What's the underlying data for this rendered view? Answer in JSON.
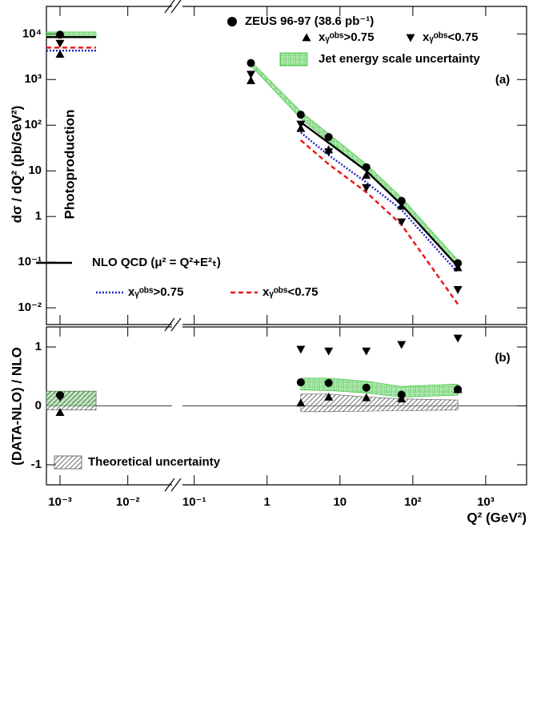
{
  "chart_data": [
    {
      "type": "line",
      "panel_label": "(a)",
      "ylabel": "dσ / dQ² (pb/GeV²)",
      "annotation": "Photoproduction",
      "yscale": "log",
      "ylim": [
        0.0043,
        40000
      ],
      "yticks": [
        {
          "value": 0.01,
          "label": "10⁻²"
        },
        {
          "value": 0.1,
          "label": "10⁻¹"
        },
        1,
        10,
        {
          "value": 100,
          "label": "10²"
        },
        {
          "value": 1000,
          "label": "10³"
        },
        {
          "value": 10000,
          "label": "10⁴"
        }
      ],
      "xscale": "log",
      "xlim": [
        0.00063,
        3640
      ],
      "x_break": [
        0.045,
        0.069
      ],
      "series": [
        {
          "name": "Jet energy scale uncertainty",
          "kind": "band",
          "color": "#22bb22",
          "x": [
            0.00063,
            0.0034,
            null,
            0.6,
            2.9,
            7,
            23,
            70,
            415
          ],
          "lower": [
            8200,
            8200,
            null,
            2000,
            140,
            45,
            10,
            1.8,
            0.08
          ],
          "upper": [
            11000,
            11000,
            null,
            2500,
            200,
            65,
            14,
            2.6,
            0.11
          ]
        },
        {
          "name": "NLO QCD (μ² = Q²+E²ₜ)",
          "kind": "line",
          "dash": "solid",
          "color": "#000000",
          "x": [
            0.00063,
            0.0034,
            null,
            2.9,
            7,
            23,
            70,
            415
          ],
          "values": [
            8500,
            8500,
            null,
            117,
            41,
            10,
            1.8,
            0.08
          ]
        },
        {
          "name": "xᵧᵒᵇˢ>0.75",
          "kind": "line",
          "dash": "dotted",
          "color": "#2222cc",
          "x": [
            0.00063,
            0.0034,
            null,
            2.9,
            7,
            23,
            70,
            415
          ],
          "values": [
            4300,
            4300,
            null,
            69,
            22,
            5.6,
            1.4,
            0.059
          ]
        },
        {
          "name": "xᵧᵒᵇˢ<0.75",
          "kind": "line",
          "dash": "dashed",
          "color": "#ee1111",
          "x": [
            0.00063,
            0.0034,
            null,
            2.9,
            7,
            23,
            70,
            415
          ],
          "values": [
            5000,
            5000,
            null,
            47,
            14,
            3.4,
            0.66,
            0.012
          ]
        },
        {
          "name": "ZEUS 96-97 (38.6 pb⁻¹)",
          "kind": "marker",
          "marker": "circle",
          "color": "#000000",
          "x": [
            0.001,
            0.6,
            2.9,
            7,
            23,
            70,
            415
          ],
          "values": [
            9600,
            2300,
            170,
            55,
            12,
            2.2,
            0.095
          ]
        },
        {
          "name": "xᵧᵒᵇˢ>0.75",
          "kind": "marker",
          "marker": "triangle-up",
          "color": "#000000",
          "x": [
            0.001,
            0.6,
            2.9,
            7,
            23,
            70,
            415
          ],
          "values": [
            3600,
            950,
            85,
            29,
            8,
            1.7,
            0.076
          ]
        },
        {
          "name": "xᵧᵒᵇˢ<0.75",
          "kind": "marker",
          "marker": "triangle-down",
          "color": "#000000",
          "x": [
            0.001,
            0.6,
            2.9,
            7,
            23,
            70,
            415
          ],
          "values": [
            6200,
            1300,
            105,
            26,
            4.3,
            0.76,
            0.025
          ]
        }
      ]
    },
    {
      "type": "line",
      "panel_label": "(b)",
      "ylabel": "(DATA-NLO) / NLO",
      "xlabel": "Q² (GeV²)",
      "yscale": "linear",
      "ylim": [
        -1.34,
        1.34
      ],
      "yticks": [
        -1,
        0,
        1
      ],
      "xscale": "log",
      "xlim": [
        0.00063,
        3640
      ],
      "x_break": [
        0.045,
        0.069
      ],
      "xticks": [
        {
          "value": 0.001,
          "label": "10⁻³"
        },
        {
          "value": 0.01,
          "label": "10⁻²"
        },
        {
          "value": 0.1,
          "label": "10⁻¹"
        },
        1,
        10,
        {
          "value": 100,
          "label": "10²"
        },
        {
          "value": 1000,
          "label": "10³"
        }
      ],
      "series": [
        {
          "kind": "band",
          "color": "#22bb22",
          "x": [
            0.00063,
            0.0034,
            null,
            2.9,
            7,
            23,
            70,
            415
          ],
          "lower": [
            0,
            0,
            null,
            0.27,
            0.26,
            0.22,
            0.15,
            0.18
          ],
          "upper": [
            0.25,
            0.25,
            null,
            0.47,
            0.47,
            0.42,
            0.33,
            0.37
          ]
        },
        {
          "name": "Theoretical uncertainty",
          "kind": "band",
          "hatch": "diagonal",
          "color": "#555555",
          "x": [
            0.00063,
            0.0034,
            null,
            2.9,
            7,
            23,
            70,
            415
          ],
          "lower": [
            -0.07,
            -0.07,
            null,
            -0.1,
            -0.1,
            -0.09,
            -0.08,
            -0.07
          ],
          "upper": [
            0.25,
            0.25,
            null,
            0.2,
            0.2,
            0.15,
            0.12,
            0.1
          ]
        },
        {
          "kind": "marker",
          "marker": "circle",
          "color": "#000000",
          "x": [
            0.001,
            2.9,
            7,
            23,
            70,
            415
          ],
          "values": [
            0.18,
            0.4,
            0.39,
            0.31,
            0.19,
            0.28
          ]
        },
        {
          "kind": "marker",
          "marker": "triangle-up",
          "color": "#000000",
          "x": [
            0.001,
            2.9,
            7,
            23,
            70,
            415
          ],
          "values": [
            -0.11,
            0.05,
            0.15,
            0.14,
            0.12,
            0.28
          ]
        },
        {
          "kind": "marker",
          "marker": "triangle-down",
          "color": "#000000",
          "x": [
            0.001,
            2.9,
            7,
            23,
            70,
            415
          ],
          "values": [
            0.15,
            0.96,
            0.93,
            0.93,
            1.04,
            1.15
          ]
        }
      ]
    }
  ]
}
